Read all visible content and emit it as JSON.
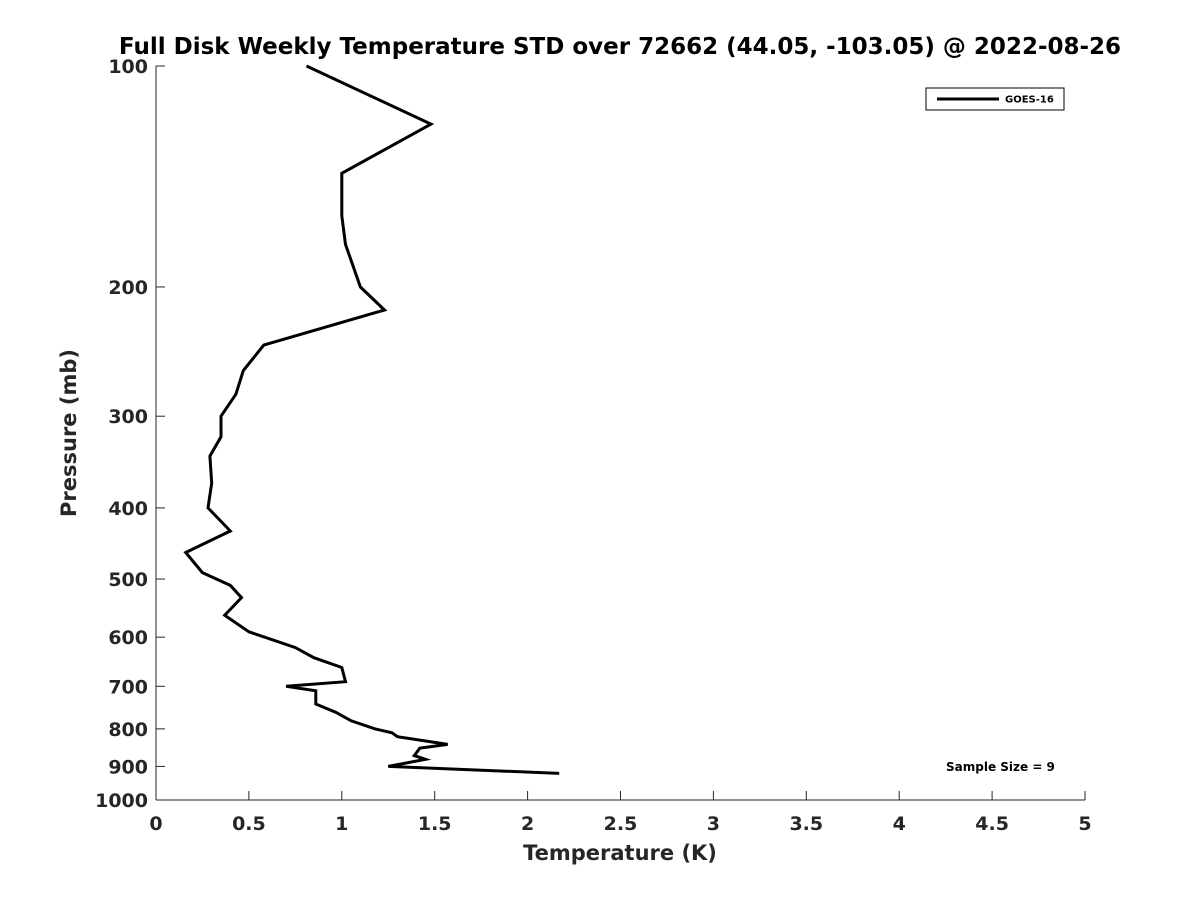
{
  "chart_data": {
    "type": "line",
    "title": "Full Disk Weekly Temperature STD over 72662 (44.05, -103.05) @ 2022-08-26",
    "xlabel": "Temperature (K)",
    "ylabel": "Pressure (mb)",
    "xlim": [
      0,
      5
    ],
    "ylim": [
      100,
      1000
    ],
    "y_scale": "log",
    "y_reversed": true,
    "x_ticks": [
      "0",
      "0.5",
      "1",
      "1.5",
      "2",
      "2.5",
      "3",
      "3.5",
      "4",
      "4.5",
      "5"
    ],
    "x_tick_values": [
      0,
      0.5,
      1,
      1.5,
      2,
      2.5,
      3,
      3.5,
      4,
      4.5,
      5
    ],
    "y_ticks": [
      "100",
      "200",
      "300",
      "400",
      "500",
      "600",
      "700",
      "800",
      "900",
      "1000"
    ],
    "y_tick_values": [
      100,
      200,
      300,
      400,
      500,
      600,
      700,
      800,
      900,
      1000
    ],
    "grid": false,
    "legend_position": "top-right",
    "series": [
      {
        "name": "GOES-16",
        "color": "#000000",
        "x": [
          0.81,
          1.48,
          1.0,
          1.0,
          1.02,
          1.1,
          1.23,
          0.58,
          0.47,
          0.43,
          0.35,
          0.35,
          0.29,
          0.3,
          0.28,
          0.4,
          0.16,
          0.25,
          0.4,
          0.46,
          0.37,
          0.5,
          0.75,
          0.85,
          1.0,
          1.02,
          0.7,
          0.86,
          0.86,
          0.97,
          1.05,
          1.18,
          1.27,
          1.3,
          1.57,
          1.42,
          1.39,
          1.45,
          1.25,
          2.17
        ],
        "y": [
          100,
          120,
          140,
          160,
          175,
          200,
          215,
          240,
          260,
          280,
          300,
          320,
          340,
          370,
          400,
          430,
          460,
          490,
          510,
          530,
          560,
          590,
          620,
          640,
          660,
          690,
          700,
          710,
          740,
          760,
          780,
          800,
          810,
          820,
          840,
          850,
          870,
          880,
          900,
          920
        ]
      }
    ],
    "annotations": [
      "Sample Size = 9"
    ]
  }
}
